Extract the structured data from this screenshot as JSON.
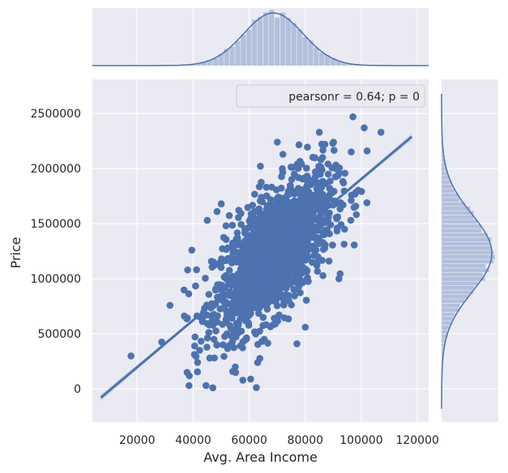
{
  "colors": {
    "panel_bg": "#eaeaf2",
    "grid": "#ffffff",
    "series": "#4c72b0",
    "marginal_bar": "#b3c0dc",
    "text": "#262626"
  },
  "chart_data": {
    "type": "scatter",
    "subtype": "jointplot with regression line and marginal histograms/KDE",
    "xlabel": "Avg. Area Income",
    "ylabel": "Price",
    "xlim": [
      4000,
      124000
    ],
    "ylim": [
      -300000,
      2810000
    ],
    "xticks": [
      20000,
      40000,
      60000,
      80000,
      100000,
      120000
    ],
    "xtick_labels": [
      "20000",
      "40000",
      "60000",
      "80000",
      "100000",
      "120000"
    ],
    "yticks": [
      0,
      500000,
      1000000,
      1500000,
      2000000,
      2500000
    ],
    "ytick_labels": [
      "0",
      "500000",
      "1000000",
      "1500000",
      "2000000",
      "2500000"
    ],
    "grid": true,
    "legend": {
      "text": "pearsonr = 0.64; p = 0",
      "placement": "top-right"
    },
    "regression": {
      "x": [
        7000,
        118000
      ],
      "y": [
        -80000,
        2290000
      ]
    },
    "points": {
      "count_estimate": 5000,
      "x_mean": 68600,
      "x_sd": 10600,
      "y_mean": 1232000,
      "y_sd": 353000,
      "correlation": 0.64
    },
    "outliers": [
      [
        17800,
        300000
      ],
      [
        38500,
        30000
      ],
      [
        47000,
        10000
      ],
      [
        37800,
        150000
      ],
      [
        41500,
        155000
      ],
      [
        41000,
        295000
      ],
      [
        38000,
        1080000
      ],
      [
        39500,
        1260000
      ],
      [
        45000,
        1530000
      ],
      [
        48500,
        1610000
      ],
      [
        50000,
        1680000
      ],
      [
        70000,
        2240000
      ],
      [
        72000,
        2130000
      ],
      [
        85000,
        2330000
      ],
      [
        97000,
        2470000
      ],
      [
        101000,
        2370000
      ],
      [
        107000,
        2330000
      ],
      [
        102000,
        1690000
      ],
      [
        98000,
        1660000
      ],
      [
        94000,
        1450000
      ],
      [
        92000,
        1000000
      ],
      [
        96500,
        1760000
      ],
      [
        60500,
        90000
      ],
      [
        63000,
        240000
      ],
      [
        55000,
        200000
      ],
      [
        77000,
        410000
      ],
      [
        80000,
        560000
      ],
      [
        87000,
        2220000
      ]
    ],
    "marginal_x": {
      "type": "histogram+kde",
      "mean": 68600,
      "sd": 10600,
      "range": [
        17000,
        108000
      ]
    },
    "marginal_y": {
      "type": "histogram+kde",
      "mean": 1232000,
      "sd": 353000,
      "range": [
        15000,
        2470000
      ]
    }
  }
}
